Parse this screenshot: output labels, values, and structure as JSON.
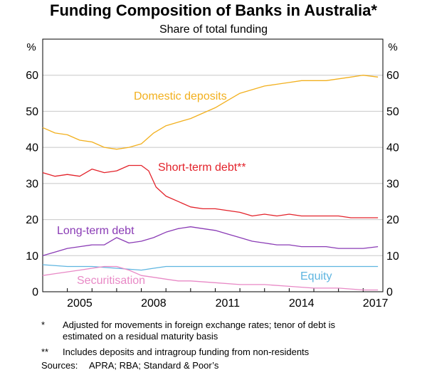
{
  "chart_data": {
    "type": "line",
    "title": "Funding Composition of Banks in Australia*",
    "subtitle": "Share of total funding",
    "ylabel_left": "%",
    "ylabel_right": "%",
    "ylim": [
      0,
      70
    ],
    "xlim": [
      2004.0,
      2017.8
    ],
    "yticks": [
      0,
      10,
      20,
      30,
      40,
      50,
      60
    ],
    "xticks": [
      "2005",
      "2008",
      "2011",
      "2014",
      "2017"
    ],
    "grid": true,
    "series": [
      {
        "name": "Domestic deposits",
        "color": "#f2b01e",
        "x": [
          2004.0,
          2004.5,
          2005.0,
          2005.5,
          2006.0,
          2006.5,
          2007.0,
          2007.5,
          2008.0,
          2008.5,
          2009.0,
          2009.5,
          2010.0,
          2010.5,
          2011.0,
          2011.5,
          2012.0,
          2012.5,
          2013.0,
          2013.5,
          2014.0,
          2014.5,
          2015.0,
          2015.5,
          2016.0,
          2016.5,
          2017.0,
          2017.6
        ],
        "values": [
          45.5,
          44,
          43.5,
          42,
          41.5,
          40,
          39.5,
          40,
          41,
          44,
          46,
          47,
          48,
          49.5,
          51,
          53,
          55,
          56,
          57,
          57.5,
          58,
          58.5,
          58.5,
          58.5,
          59,
          59.5,
          60,
          59.5
        ]
      },
      {
        "name": "Short-term debt**",
        "color": "#e3232b",
        "x": [
          2004.0,
          2004.5,
          2005.0,
          2005.5,
          2006.0,
          2006.5,
          2007.0,
          2007.5,
          2008.0,
          2008.3,
          2008.6,
          2009.0,
          2009.5,
          2010.0,
          2010.5,
          2011.0,
          2011.5,
          2012.0,
          2012.5,
          2013.0,
          2013.5,
          2014.0,
          2014.5,
          2015.0,
          2015.5,
          2016.0,
          2016.5,
          2017.0,
          2017.6
        ],
        "values": [
          33,
          32,
          32.5,
          32,
          34,
          33,
          33.5,
          35,
          35,
          33.5,
          29,
          26.5,
          25,
          23.5,
          23,
          23,
          22.5,
          22,
          21,
          21.5,
          21,
          21.5,
          21,
          21,
          21,
          21,
          20.5,
          20.5,
          20.5
        ]
      },
      {
        "name": "Long-term debt",
        "color": "#8a3bb5",
        "x": [
          2004.0,
          2004.5,
          2005.0,
          2005.5,
          2006.0,
          2006.5,
          2007.0,
          2007.5,
          2008.0,
          2008.5,
          2009.0,
          2009.5,
          2010.0,
          2010.5,
          2011.0,
          2011.5,
          2012.0,
          2012.5,
          2013.0,
          2013.5,
          2014.0,
          2014.5,
          2015.0,
          2015.5,
          2016.0,
          2016.5,
          2017.0,
          2017.6
        ],
        "values": [
          10,
          11,
          12,
          12.5,
          13,
          13,
          15,
          13.5,
          14,
          15,
          16.5,
          17.5,
          18,
          17.5,
          17,
          16,
          15,
          14,
          13.5,
          13,
          13,
          12.5,
          12.5,
          12.5,
          12,
          12,
          12,
          12.5
        ]
      },
      {
        "name": "Equity",
        "color": "#5eb5e0",
        "x": [
          2004.0,
          2005.0,
          2006.0,
          2007.0,
          2008.0,
          2008.5,
          2009.0,
          2010.0,
          2011.0,
          2012.0,
          2013.0,
          2014.0,
          2015.0,
          2016.0,
          2017.0,
          2017.6
        ],
        "values": [
          7.5,
          7,
          7,
          6.5,
          6,
          6.5,
          7,
          7,
          7,
          7,
          7,
          7,
          7,
          7,
          7,
          7
        ]
      },
      {
        "name": "Securitisation",
        "color": "#e889c6",
        "x": [
          2004.0,
          2004.5,
          2005.0,
          2005.5,
          2006.0,
          2006.5,
          2007.0,
          2007.5,
          2008.0,
          2008.5,
          2009.0,
          2009.5,
          2010.0,
          2011.0,
          2012.0,
          2013.0,
          2014.0,
          2015.0,
          2016.0,
          2017.0,
          2017.6
        ],
        "values": [
          4.5,
          5,
          5.5,
          6,
          6.5,
          7,
          7,
          6,
          4.5,
          4,
          3.5,
          3,
          3,
          2.5,
          2,
          2,
          1.5,
          1,
          1,
          0.5,
          0.5
        ]
      }
    ],
    "footnotes": [
      {
        "mark": "*",
        "text_lines": [
          "Adjusted for movements in foreign exchange rates; tenor of debt is",
          "estimated on a residual maturity basis"
        ]
      },
      {
        "mark": "**",
        "text_lines": [
          "Includes deposits and intragroup funding from non-residents"
        ]
      }
    ],
    "sources_label": "Sources:",
    "sources_text": "APRA; RBA; Standard & Poor’s"
  }
}
